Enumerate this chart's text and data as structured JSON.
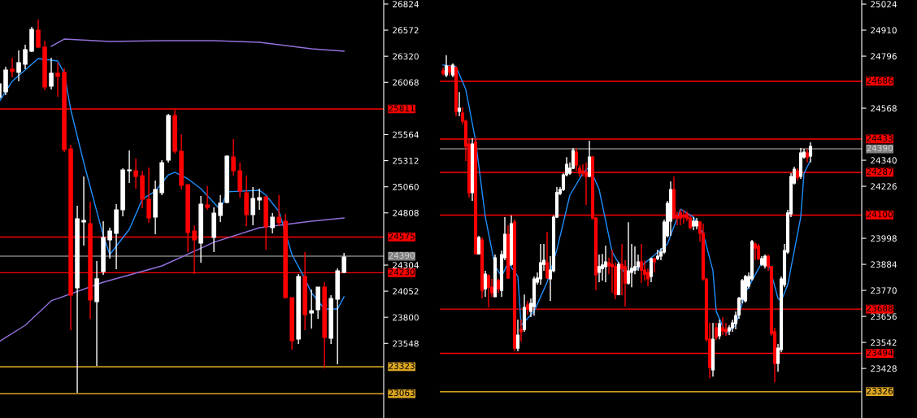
{
  "chart_data": [
    {
      "type": "candlestick",
      "categories": [
        null,
        null,
        null,
        null,
        null,
        null,
        null,
        null,
        null,
        null,
        null,
        null,
        null,
        null,
        null,
        null,
        null,
        null,
        null,
        null,
        null,
        null,
        null,
        null,
        null,
        null,
        null,
        null,
        null,
        null,
        null,
        null,
        null,
        null,
        null,
        null,
        null,
        null,
        null,
        null,
        null,
        null,
        null,
        null,
        null,
        null,
        null,
        null,
        null,
        null,
        null,
        null,
        null,
        null
      ],
      "ohlc": [
        [
          25921,
          26078,
          25905,
          26054
        ],
        [
          25976,
          26219,
          25945,
          26188
        ],
        [
          26196,
          26306,
          26117,
          26172
        ],
        [
          26164,
          26376,
          26078,
          26259
        ],
        [
          26243,
          26431,
          26196,
          26384
        ],
        [
          26368,
          26604,
          26361,
          26580
        ],
        [
          26573,
          26675,
          26400,
          26408
        ],
        [
          26408,
          26471,
          25992,
          26023
        ],
        [
          26031,
          26306,
          26000,
          26157
        ],
        [
          26157,
          26259,
          25929,
          26125
        ],
        [
          26164,
          26204,
          25395,
          25419
        ],
        [
          25426,
          25466,
          23676,
          24013
        ],
        [
          24084,
          24877,
          23072,
          24751
        ],
        [
          24720,
          25160,
          24492,
          24736
        ],
        [
          24704,
          24916,
          23786,
          23966
        ],
        [
          23951,
          24343,
          23331,
          24171
        ],
        [
          24241,
          24728,
          24210,
          24571
        ],
        [
          24547,
          24665,
          24367,
          24634
        ],
        [
          24610,
          24893,
          24265,
          24838
        ],
        [
          24838,
          25238,
          24775,
          25222
        ],
        [
          25215,
          25411,
          25097,
          25222
        ],
        [
          25215,
          25332,
          25042,
          25160
        ],
        [
          25167,
          25215,
          24854,
          24940
        ],
        [
          24940,
          25246,
          24712,
          24759
        ],
        [
          24767,
          25121,
          24602,
          25034
        ],
        [
          25003,
          25317,
          24979,
          25293
        ],
        [
          25317,
          25764,
          25293,
          25748
        ],
        [
          25748,
          25803,
          25380,
          25403
        ],
        [
          25403,
          25568,
          25034,
          25073
        ],
        [
          25081,
          25081,
          24430,
          24618
        ],
        [
          24634,
          24689,
          24218,
          24547
        ],
        [
          24516,
          24971,
          24327,
          24893
        ],
        [
          24885,
          25065,
          24838,
          24861
        ],
        [
          24571,
          24861,
          24430,
          24806
        ],
        [
          24783,
          24979,
          24720,
          24901
        ],
        [
          24908,
          25364,
          24901,
          25356
        ],
        [
          25348,
          25521,
          25167,
          25215
        ],
        [
          25215,
          25293,
          24955,
          25018
        ],
        [
          25003,
          25167,
          24681,
          24791
        ],
        [
          24791,
          25058,
          24689,
          24948
        ],
        [
          24932,
          25042,
          24838,
          24955
        ],
        [
          24963,
          24963,
          24453,
          24673
        ],
        [
          24665,
          24806,
          24610,
          24767
        ],
        [
          24767,
          24979,
          24681,
          24712
        ],
        [
          24728,
          24798,
          23982,
          23990
        ],
        [
          23990,
          23990,
          23488,
          23574
        ],
        [
          23590,
          24218,
          23543,
          24194
        ],
        [
          24194,
          24430,
          23676,
          23825
        ],
        [
          23841,
          24068,
          23692,
          23864
        ],
        [
          23872,
          24092,
          23786,
          24092
        ],
        [
          24092,
          24139,
          23307,
          23605
        ],
        [
          23597,
          24013,
          23543,
          23982
        ],
        [
          23974,
          24273,
          23346,
          24249
        ],
        [
          24233,
          24422,
          24225,
          24382
        ]
      ],
      "series": [
        {
          "type": "line",
          "color": "#1e90ff",
          "values": [
            25882,
            null,
            26078,
            null,
            null,
            null,
            26298,
            null,
            null,
            26274,
            26157,
            25803,
            null,
            25293,
            null,
            null,
            24587,
            24406,
            null,
            null,
            24649,
            null,
            24940,
            null,
            25018,
            null,
            25175,
            25199,
            null,
            25136,
            null,
            25042,
            null,
            null,
            24838,
            25011,
            null,
            null,
            null,
            null,
            25026,
            24979,
            null,
            24822,
            null,
            24406,
            null,
            24171,
            24037,
            null,
            23880,
            null,
            23880,
            23998
          ]
        },
        {
          "type": "line",
          "color": "#9370db",
          "values": [
            23566,
            null,
            null,
            null,
            23723,
            null,
            null,
            null,
            23959,
            null,
            null,
            null,
            null,
            null,
            null,
            null,
            24139,
            null,
            null,
            null,
            null,
            null,
            null,
            null,
            null,
            24296,
            null,
            null,
            null,
            null,
            null,
            null,
            null,
            24524,
            null,
            null,
            null,
            null,
            null,
            null,
            24665,
            null,
            null,
            null,
            null,
            null,
            null,
            null,
            24728,
            null,
            null,
            null,
            null,
            24759
          ]
        },
        {
          "type": "line",
          "color": "#9370db",
          "values": [
            null,
            null,
            null,
            null,
            null,
            null,
            null,
            null,
            26416,
            null,
            26486,
            null,
            null,
            null,
            null,
            null,
            null,
            26463,
            null,
            null,
            null,
            null,
            null,
            null,
            null,
            26471,
            null,
            null,
            null,
            null,
            null,
            null,
            null,
            26471,
            null,
            null,
            null,
            null,
            null,
            null,
            26455,
            null,
            null,
            null,
            null,
            null,
            null,
            null,
            26392,
            null,
            null,
            null,
            null,
            26369
          ]
        }
      ],
      "ylim": [
        22828,
        26863
      ],
      "yticks": [
        26824,
        26572,
        26320,
        26068,
        25564,
        25312,
        25060,
        24808,
        24304,
        24052,
        23800,
        23548
      ],
      "ref_lines": [
        {
          "axis": "y",
          "value": 25811,
          "label": "25811",
          "color": "#ff0000"
        },
        {
          "axis": "y",
          "value": 24575,
          "label": "24575",
          "color": "#ff0000"
        },
        {
          "axis": "y",
          "value": 24390,
          "label": "24390",
          "color": "#808080"
        },
        {
          "axis": "y",
          "value": 24230,
          "label": "24230",
          "color": "#ff0000"
        },
        {
          "axis": "y",
          "value": 23323,
          "label": "23323",
          "color": "#daa520"
        },
        {
          "axis": "y",
          "value": 23063,
          "label": "23063",
          "color": "#daa520"
        }
      ],
      "tick_labels": "y",
      "grid": false,
      "legend": false
    },
    {
      "type": "candlestick",
      "categories": [
        null,
        null,
        null,
        null,
        null,
        null,
        null,
        null,
        null,
        null,
        null,
        null,
        null,
        null,
        null,
        null,
        null,
        null,
        null,
        null,
        null,
        null,
        null,
        null,
        null,
        null,
        null,
        null,
        null,
        null,
        null,
        null,
        null,
        null,
        null,
        null,
        null,
        null,
        null,
        null,
        null,
        null,
        null,
        null,
        null,
        null,
        null,
        null,
        null,
        null,
        null,
        null,
        null,
        null,
        null,
        null,
        null,
        null,
        null,
        null,
        null,
        null,
        null,
        null,
        null,
        null,
        null,
        null,
        null,
        null,
        null,
        null,
        null,
        null,
        null,
        null,
        null,
        null,
        null,
        null,
        null,
        null,
        null,
        null,
        null,
        null,
        null,
        null,
        null,
        null,
        null,
        null,
        null,
        null,
        null,
        null,
        null,
        null,
        null,
        null,
        null,
        null,
        null,
        null,
        null,
        null,
        null,
        null,
        null,
        null,
        null,
        null,
        null,
        null,
        null,
        null,
        null,
        null,
        null,
        null,
        null,
        null,
        null,
        null,
        null,
        null,
        null,
        null,
        null
      ],
      "ohlc": [
        [
          24732,
          24746,
          24711,
          24721
        ],
        [
          24714,
          24800,
          24704,
          24753
        ],
        [
          24750,
          24757,
          24711,
          24725
        ],
        [
          24714,
          24764,
          24704,
          24757
        ],
        [
          24746,
          24750,
          24533,
          24554
        ],
        [
          24554,
          24639,
          24533,
          24568
        ],
        [
          24547,
          24572,
          24497,
          24511
        ],
        [
          24511,
          24518,
          24337,
          24401
        ],
        [
          24411,
          24436,
          24176,
          24198
        ],
        [
          24198,
          24436,
          24162,
          24411
        ],
        [
          24419,
          24436,
          23927,
          23930
        ],
        [
          23930,
          24009,
          23927,
          24002
        ],
        [
          23991,
          24002,
          23735,
          23770
        ],
        [
          23777,
          23856,
          23742,
          23841
        ],
        [
          23834,
          23841,
          23695,
          23784
        ],
        [
          23784,
          23820,
          23742,
          23760
        ],
        [
          23742,
          23927,
          23742,
          23913
        ],
        [
          23813,
          23820,
          23760,
          23777
        ],
        [
          23770,
          23945,
          23742,
          23927
        ],
        [
          23913,
          24091,
          23902,
          24016
        ],
        [
          24016,
          24055,
          23820,
          23824
        ],
        [
          23884,
          24098,
          23877,
          24062
        ],
        [
          24069,
          24080,
          23503,
          23517
        ],
        [
          23517,
          23642,
          23503,
          23574
        ],
        [
          23599,
          23642,
          23546,
          23589
        ],
        [
          23599,
          23752,
          23589,
          23695
        ],
        [
          23706,
          23724,
          23663,
          23688
        ],
        [
          23678,
          23735,
          23653,
          23713
        ],
        [
          23699,
          23831,
          23660,
          23820
        ],
        [
          23806,
          23849,
          23795,
          23824
        ],
        [
          23820,
          23973,
          23795,
          23891
        ],
        [
          23884,
          23973,
          23856,
          23902
        ],
        [
          23891,
          24027,
          23820,
          23824
        ],
        [
          23820,
          23920,
          23724,
          23859
        ],
        [
          23856,
          24098,
          23849,
          24091
        ],
        [
          24091,
          24223,
          24087,
          24198
        ],
        [
          24194,
          24223,
          24187,
          24212
        ],
        [
          24212,
          24283,
          24205,
          24276
        ],
        [
          24276,
          24354,
          24269,
          24322
        ],
        [
          24283,
          24330,
          24276,
          24305
        ],
        [
          24305,
          24394,
          24301,
          24383
        ],
        [
          24376,
          24394,
          24294,
          24319
        ],
        [
          24305,
          24319,
          24269,
          24283
        ],
        [
          24294,
          24322,
          24269,
          24283
        ],
        [
          24287,
          24330,
          24144,
          24269
        ],
        [
          24269,
          24426,
          24265,
          24354
        ],
        [
          24354,
          24358,
          24080,
          24087
        ],
        [
          24087,
          24091,
          23770,
          23838
        ],
        [
          23849,
          23927,
          23806,
          23874
        ],
        [
          23866,
          23930,
          23813,
          23881
        ],
        [
          23874,
          23966,
          23806,
          23895
        ],
        [
          23891,
          23913,
          23841,
          23877
        ],
        [
          23884,
          23948,
          23760,
          23874
        ],
        [
          23874,
          23891,
          23731,
          23752
        ],
        [
          23752,
          23895,
          23749,
          23884
        ],
        [
          23884,
          23973,
          23749,
          23866
        ],
        [
          23874,
          23902,
          23699,
          23802
        ],
        [
          23802,
          24069,
          23795,
          23856
        ],
        [
          23849,
          23973,
          23784,
          23866
        ],
        [
          23859,
          23963,
          23841,
          23874
        ],
        [
          23874,
          23927,
          23856,
          23895
        ],
        [
          23895,
          23973,
          23802,
          23859
        ],
        [
          23859,
          23902,
          23813,
          23841
        ],
        [
          23849,
          23866,
          23788,
          23820
        ],
        [
          23831,
          23913,
          23806,
          23909
        ],
        [
          23909,
          23913,
          23849,
          23895
        ],
        [
          23909,
          23948,
          23902,
          23920
        ],
        [
          23920,
          23955,
          23902,
          23938
        ],
        [
          23938,
          24080,
          23930,
          24069
        ],
        [
          24009,
          24162,
          24002,
          24151
        ],
        [
          24073,
          24248,
          24009,
          24212
        ],
        [
          24212,
          24269,
          24080,
          24087
        ],
        [
          24098,
          24116,
          24055,
          24087
        ],
        [
          24109,
          24126,
          24055,
          24087
        ],
        [
          24098,
          24123,
          24062,
          24091
        ],
        [
          24105,
          24116,
          24073,
          24087
        ],
        [
          24087,
          24098,
          24037,
          24045
        ],
        [
          24052,
          24091,
          24034,
          24073
        ],
        [
          24052,
          24087,
          24037,
          24073
        ],
        [
          24069,
          24073,
          23984,
          24020
        ],
        [
          24020,
          24062,
          23813,
          23820
        ],
        [
          23820,
          23824,
          23546,
          23556
        ],
        [
          23556,
          23628,
          23385,
          23432
        ],
        [
          23421,
          23628,
          23393,
          23556
        ],
        [
          23606,
          23628,
          23553,
          23564
        ],
        [
          23571,
          23642,
          23556,
          23624
        ],
        [
          23606,
          23653,
          23574,
          23592
        ],
        [
          23599,
          23628,
          23571,
          23589
        ],
        [
          23592,
          23617,
          23574,
          23606
        ],
        [
          23606,
          23642,
          23589,
          23628
        ],
        [
          23624,
          23678,
          23599,
          23660
        ],
        [
          23663,
          23742,
          23646,
          23735
        ],
        [
          23731,
          23820,
          23713,
          23813
        ],
        [
          23724,
          23838,
          23717,
          23831
        ],
        [
          23788,
          23849,
          23777,
          23831
        ],
        [
          23820,
          23991,
          23813,
          23984
        ],
        [
          23973,
          23980,
          23902,
          23955
        ],
        [
          23963,
          23973,
          23902,
          23909
        ],
        [
          23884,
          23920,
          23877,
          23909
        ],
        [
          23877,
          23927,
          23866,
          23920
        ],
        [
          23920,
          23927,
          23856,
          23874
        ],
        [
          23874,
          23874,
          23571,
          23581
        ],
        [
          23589,
          23606,
          23368,
          23450
        ],
        [
          23450,
          23535,
          23414,
          23517
        ],
        [
          23510,
          23831,
          23499,
          23820
        ],
        [
          23795,
          23973,
          23784,
          23945
        ],
        [
          23938,
          24123,
          23930,
          24109
        ],
        [
          24105,
          24283,
          24091,
          24269
        ],
        [
          24240,
          24312,
          24233,
          24301
        ],
        [
          24294,
          24305,
          24251,
          24265
        ],
        [
          24269,
          24394,
          24258,
          24372
        ],
        [
          24354,
          24390,
          24347,
          24376
        ],
        [
          24372,
          24390,
          24330,
          24354
        ],
        [
          24358,
          24419,
          24330,
          24401
        ],
        null,
        null,
        null,
        null,
        null,
        null,
        null,
        null,
        null,
        null,
        null,
        null,
        null,
        null,
        null
      ],
      "series": [
        {
          "type": "line",
          "color": "#1e90ff",
          "values": [
            24757,
            null,
            null,
            null,
            24750,
            null,
            null,
            24650,
            null,
            null,
            24426,
            null,
            null,
            24091,
            null,
            null,
            23877,
            null,
            23831,
            null,
            23891,
            null,
            null,
            23831,
            23617,
            null,
            null,
            null,
            23678,
            null,
            null,
            null,
            23806,
            null,
            null,
            23948,
            null,
            null,
            null,
            24187,
            null,
            null,
            null,
            24283,
            null,
            24312,
            null,
            null,
            24212,
            null,
            null,
            null,
            23938,
            null,
            null,
            null,
            23841,
            null,
            null,
            null,
            23866,
            null,
            null,
            null,
            23913,
            null,
            null,
            null,
            null,
            23973,
            null,
            null,
            null,
            24126,
            null,
            null,
            null,
            24091,
            null,
            null,
            24020,
            null,
            null,
            23856,
            23678,
            null,
            null,
            23581,
            null,
            null,
            23617,
            null,
            null,
            23760,
            null,
            null,
            null,
            null,
            23891,
            null,
            23895,
            null,
            null,
            23735,
            23724,
            null,
            23795,
            null,
            null,
            null,
            24091,
            24283,
            null,
            24340,
            null,
            null,
            null,
            null,
            null,
            null,
            null,
            null,
            null,
            null,
            null,
            null,
            null,
            null,
            null
          ]
        }
      ],
      "ylim": [
        23211,
        25042
      ],
      "yticks": [
        25024,
        24910,
        24796,
        24568,
        24340,
        24226,
        23998,
        23884,
        23770,
        23656,
        23542,
        23428
      ],
      "ref_lines": [
        {
          "axis": "y",
          "value": 24686,
          "label": "24686",
          "color": "#ff0000"
        },
        {
          "axis": "y",
          "value": 24433,
          "label": "24433",
          "color": "#ff0000"
        },
        {
          "axis": "y",
          "value": 24390,
          "label": "24390",
          "color": "#808080"
        },
        {
          "axis": "y",
          "value": 24287,
          "label": "24287",
          "color": "#ff0000"
        },
        {
          "axis": "y",
          "value": 24100,
          "label": "24100",
          "color": "#ff0000"
        },
        {
          "axis": "y",
          "value": 23688,
          "label": "23688",
          "color": "#ff0000"
        },
        {
          "axis": "y",
          "value": 23494,
          "label": "23494",
          "color": "#ff0000"
        },
        {
          "axis": "y",
          "value": 23326,
          "label": "23326",
          "color": "#daa520"
        }
      ],
      "tick_labels": "y",
      "grid": false,
      "legend": false
    }
  ]
}
